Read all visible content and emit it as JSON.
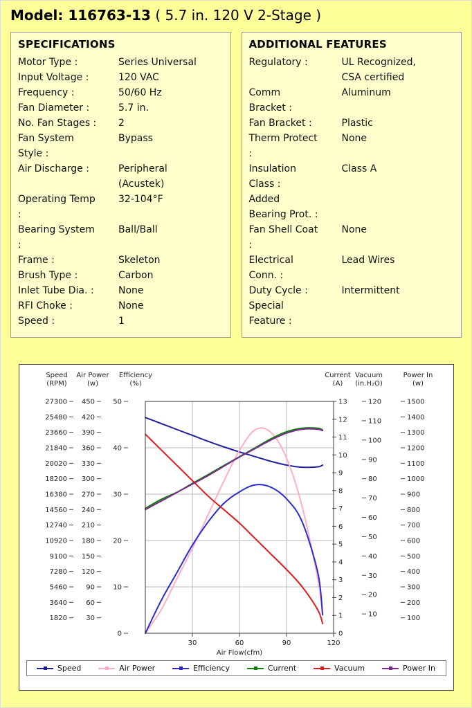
{
  "page": {
    "title_model": "Model: 116763-13",
    "title_suffix": " ( 5.7 in. 120 V 2-Stage )"
  },
  "specifications": {
    "heading": "SPECIFICATIONS",
    "rows": [
      {
        "label": "Motor Type :",
        "value": "Series Universal"
      },
      {
        "label": "Input Voltage :",
        "value": "120 VAC"
      },
      {
        "label": "Frequency :",
        "value": "50/60 Hz"
      },
      {
        "label": "Fan Diameter :",
        "value": "5.7 in."
      },
      {
        "label": "No. Fan Stages :",
        "value": "2"
      },
      {
        "label": "Fan System Style :",
        "value": "Bypass"
      },
      {
        "label": "Air Discharge :",
        "value": "Peripheral (Acustek)"
      },
      {
        "label": "Operating Temp :",
        "value": "32-104°F"
      },
      {
        "label": "Bearing System :",
        "value": "Ball/Ball"
      },
      {
        "label": "Frame :",
        "value": "Skeleton"
      },
      {
        "label": "Brush Type :",
        "value": "Carbon"
      },
      {
        "label": "Inlet Tube Dia. :",
        "value": "None"
      },
      {
        "label": "RFI Choke :",
        "value": "None"
      },
      {
        "label": "Speed :",
        "value": "1"
      }
    ]
  },
  "additional_features": {
    "heading": "ADDITIONAL FEATURES",
    "rows": [
      {
        "label": "Regulatory :",
        "value": "UL Recognized, CSA certified"
      },
      {
        "label": "Comm Bracket :",
        "value": "Aluminum"
      },
      {
        "label": "Fan Bracket :",
        "value": "Plastic"
      },
      {
        "label": "Therm Protect :",
        "value": "None"
      },
      {
        "label": "Insulation Class :",
        "value": "Class A"
      },
      {
        "label": "Added Bearing Prot. :",
        "value": ""
      },
      {
        "label": "Fan Shell Coat :",
        "value": "None"
      },
      {
        "label": "Electrical Conn. :",
        "value": "Lead Wires"
      },
      {
        "label": "Duty Cycle :",
        "value": "Intermittent"
      },
      {
        "label": "Special Feature :",
        "value": ""
      }
    ]
  },
  "chart_data": {
    "type": "line",
    "xlabel": "Air Flow(cfm)",
    "x_range": [
      0,
      120
    ],
    "x_ticks": [
      30,
      60,
      90,
      120
    ],
    "grid": true,
    "legend_position": "bottom",
    "axes_left": [
      {
        "id": "speed",
        "title": [
          "Speed",
          "(RPM)"
        ],
        "max": 27300,
        "ticks": [
          27300,
          25480,
          23660,
          21840,
          20020,
          18200,
          16380,
          14560,
          12740,
          10920,
          9100,
          7280,
          5460,
          3640,
          1820
        ]
      },
      {
        "id": "air_power",
        "title": [
          "Air Power",
          "(w)"
        ],
        "max": 450,
        "ticks": [
          450,
          420,
          390,
          360,
          330,
          300,
          270,
          240,
          210,
          180,
          150,
          120,
          90,
          60,
          30
        ]
      },
      {
        "id": "efficiency",
        "title": [
          "Efficiency",
          "(%)"
        ],
        "max": 50,
        "ticks": [
          50,
          40,
          30,
          20,
          10,
          0
        ]
      }
    ],
    "axes_right": [
      {
        "id": "current",
        "title": [
          "Current",
          "(A)"
        ],
        "max": 13,
        "ticks": [
          13,
          12,
          11,
          10,
          9,
          8,
          7,
          6,
          5,
          4,
          3,
          2,
          1,
          0
        ]
      },
      {
        "id": "vacuum",
        "title": [
          "Vacuum",
          "(in.H₂O)"
        ],
        "max": 120,
        "ticks": [
          120,
          110,
          100,
          90,
          80,
          70,
          60,
          50,
          40,
          30,
          20,
          10
        ]
      },
      {
        "id": "power_in",
        "title": [
          "Power In",
          "(w)"
        ],
        "max": 1500,
        "ticks": [
          1500,
          1400,
          1300,
          1200,
          1100,
          1000,
          900,
          800,
          700,
          600,
          500,
          400,
          300,
          200,
          100
        ]
      }
    ],
    "x": [
      0,
      10,
      20,
      30,
      40,
      50,
      60,
      70,
      80,
      90,
      100,
      110,
      113
    ],
    "series": [
      {
        "name": "Speed",
        "axis": "speed",
        "color": "#1f1f9b",
        "values": [
          25400,
          24700,
          24000,
          23300,
          22600,
          21950,
          21350,
          20800,
          20250,
          19800,
          19550,
          19600,
          19800
        ]
      },
      {
        "name": "Air Power",
        "axis": "air_power",
        "color": "#ffaec6",
        "values": [
          0,
          45,
          105,
          165,
          230,
          295,
          355,
          395,
          390,
          340,
          245,
          105,
          35
        ]
      },
      {
        "name": "Efficiency",
        "axis": "efficiency",
        "color": "#2b2bd5",
        "values": [
          0,
          7,
          13,
          19,
          24,
          28,
          30.5,
          32,
          31.5,
          29,
          24,
          13,
          4
        ]
      },
      {
        "name": "Current",
        "axis": "current",
        "color": "#0b800b",
        "values": [
          7.0,
          7.5,
          7.9,
          8.4,
          8.9,
          9.4,
          9.9,
          10.4,
          10.9,
          11.3,
          11.5,
          11.5,
          11.4
        ]
      },
      {
        "name": "Vacuum",
        "axis": "vacuum",
        "color": "#e01b1b",
        "values": [
          103,
          95,
          87,
          79,
          71,
          64,
          57,
          49,
          41,
          33,
          24,
          12,
          5
        ]
      },
      {
        "name": "Power In",
        "axis": "power_in",
        "color": "#7e2a8e",
        "values": [
          800,
          855,
          910,
          965,
          1020,
          1080,
          1140,
          1195,
          1250,
          1295,
          1320,
          1320,
          1310
        ]
      }
    ],
    "legend": [
      "Speed",
      "Air Power",
      "Efficiency",
      "Current",
      "Vacuum",
      "Power In"
    ]
  }
}
